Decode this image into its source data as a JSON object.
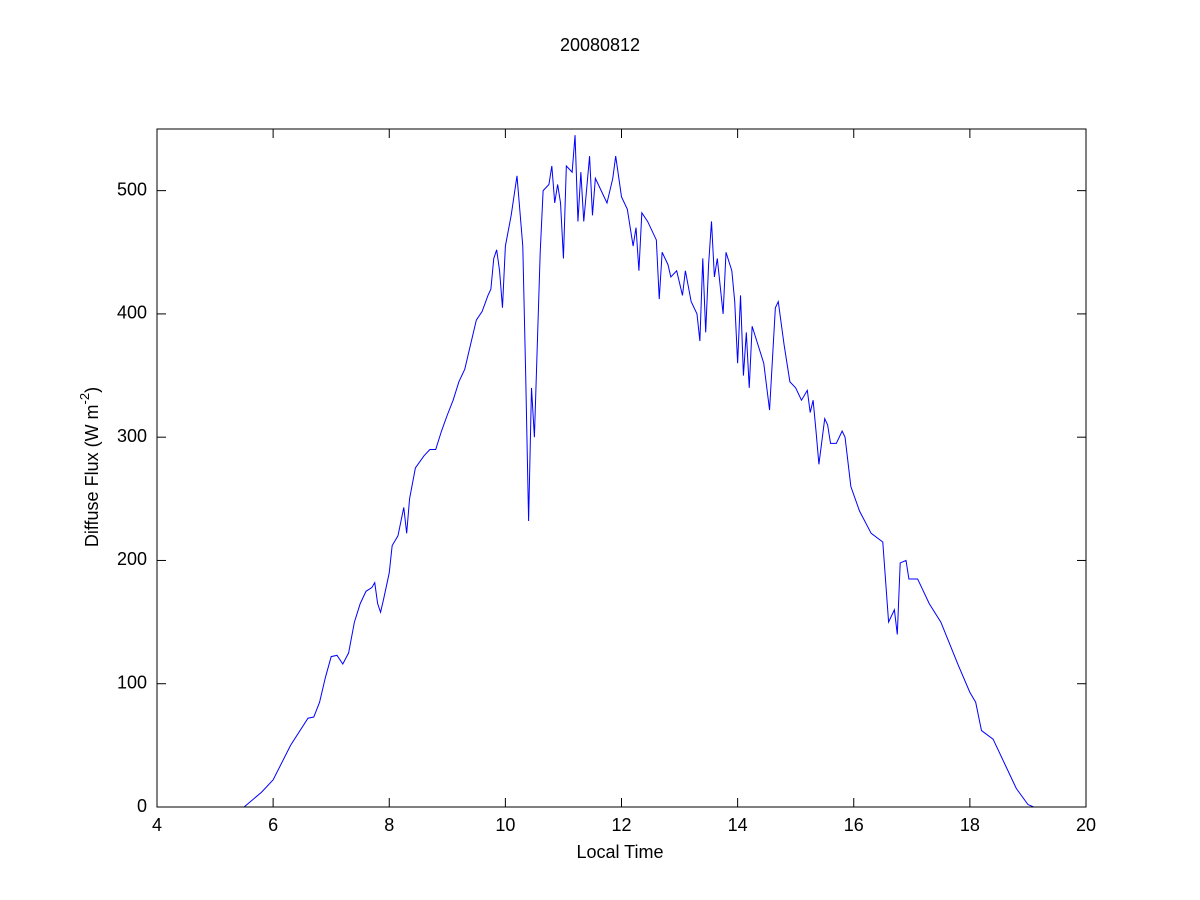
{
  "chart_data": {
    "type": "line",
    "title": "20080812",
    "xlabel": "Local Time",
    "ylabel": [
      "Diffuse Flux (W m",
      "-2",
      ")"
    ],
    "xlim": [
      4,
      20
    ],
    "xticks": [
      4,
      6,
      8,
      10,
      12,
      14,
      16,
      18,
      20
    ],
    "ylim": [
      0,
      550
    ],
    "yticks": [
      0,
      100,
      200,
      300,
      400,
      500
    ],
    "grid": false,
    "box": true,
    "series": [
      {
        "color": "#0000ff",
        "x": [
          5.5,
          5.8,
          6.0,
          6.3,
          6.6,
          6.7,
          6.8,
          6.9,
          7.0,
          7.1,
          7.2,
          7.3,
          7.4,
          7.5,
          7.6,
          7.7,
          7.75,
          7.8,
          7.85,
          7.9,
          8.0,
          8.05,
          8.15,
          8.25,
          8.3,
          8.35,
          8.45,
          8.6,
          8.7,
          8.8,
          8.9,
          9.0,
          9.1,
          9.2,
          9.3,
          9.35,
          9.5,
          9.6,
          9.7,
          9.75,
          9.8,
          9.85,
          9.9,
          9.95,
          10.0,
          10.1,
          10.2,
          10.3,
          10.35,
          10.4,
          10.45,
          10.5,
          10.6,
          10.65,
          10.75,
          10.8,
          10.85,
          10.9,
          10.95,
          11.0,
          11.05,
          11.15,
          11.2,
          11.25,
          11.3,
          11.35,
          11.45,
          11.5,
          11.55,
          11.65,
          11.75,
          11.85,
          11.9,
          12.0,
          12.1,
          12.2,
          12.25,
          12.3,
          12.35,
          12.45,
          12.6,
          12.65,
          12.7,
          12.8,
          12.85,
          12.95,
          13.05,
          13.1,
          13.2,
          13.3,
          13.35,
          13.4,
          13.45,
          13.5,
          13.55,
          13.6,
          13.65,
          13.75,
          13.8,
          13.9,
          13.95,
          14.0,
          14.05,
          14.1,
          14.15,
          14.2,
          14.25,
          14.35,
          14.45,
          14.55,
          14.65,
          14.7,
          14.8,
          14.9,
          15.0,
          15.1,
          15.2,
          15.25,
          15.3,
          15.35,
          15.4,
          15.5,
          15.55,
          15.6,
          15.7,
          15.8,
          15.85,
          15.95,
          16.1,
          16.3,
          16.5,
          16.6,
          16.7,
          16.75,
          16.8,
          16.9,
          16.95,
          17.1,
          17.3,
          17.5,
          17.8,
          18.0,
          18.1,
          18.2,
          18.4,
          18.6,
          18.8,
          19.0,
          19.1
        ],
        "values": [
          0,
          12,
          22,
          50,
          72,
          73,
          85,
          105,
          122,
          123,
          116,
          125,
          150,
          165,
          175,
          178,
          182,
          165,
          158,
          168,
          190,
          212,
          220,
          243,
          222,
          250,
          275,
          285,
          290,
          290,
          305,
          318,
          330,
          345,
          355,
          365,
          395,
          402,
          415,
          420,
          445,
          452,
          435,
          405,
          455,
          480,
          512,
          455,
          350,
          232,
          340,
          300,
          450,
          500,
          505,
          520,
          490,
          505,
          490,
          445,
          520,
          515,
          545,
          475,
          515,
          475,
          528,
          480,
          510,
          500,
          490,
          510,
          528,
          495,
          485,
          455,
          470,
          435,
          482,
          475,
          460,
          412,
          450,
          440,
          430,
          435,
          415,
          435,
          410,
          400,
          378,
          445,
          385,
          440,
          475,
          430,
          445,
          400,
          450,
          435,
          410,
          360,
          415,
          350,
          385,
          340,
          390,
          375,
          360,
          322,
          405,
          410,
          375,
          345,
          340,
          330,
          338,
          320,
          330,
          305,
          278,
          315,
          310,
          295,
          295,
          305,
          300,
          260,
          240,
          222,
          215,
          150,
          160,
          140,
          198,
          200,
          185,
          185,
          165,
          150,
          115,
          93,
          85,
          62,
          55,
          35,
          15,
          2,
          0
        ]
      }
    ]
  }
}
